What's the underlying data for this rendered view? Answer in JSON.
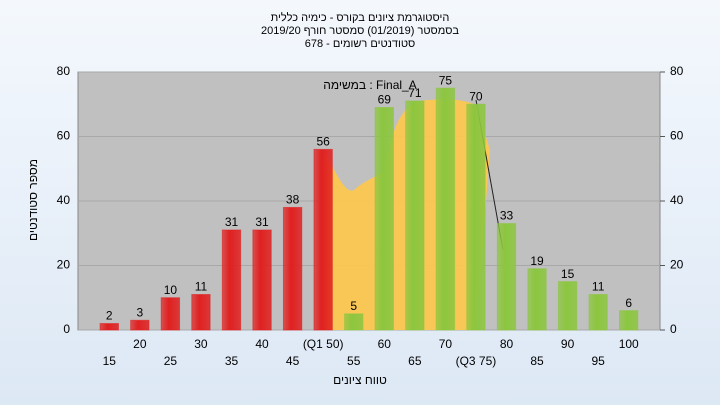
{
  "chart_data": {
    "type": "bar",
    "title": "היסטוגרמת ציונים בקורס - כימיה כללית",
    "subtitle": "בסמסטר  (01/2019)  סמסטר חורף 2019/20",
    "subtitle2": "סטודנטים רשומים - 678",
    "annotation": "במשימה : Final_A",
    "x_label": "טווח ציונים",
    "y_label": "מספר סטודנטים",
    "categories": [
      "15",
      "20",
      "25",
      "30",
      "35",
      "40",
      "45",
      "(Q1 50)",
      "55",
      "60",
      "65",
      "70",
      "(Q3 75)",
      "80",
      "85",
      "90",
      "95",
      "100"
    ],
    "values": [
      2,
      3,
      10,
      11,
      31,
      31,
      38,
      56,
      5,
      69,
      71,
      75,
      70,
      33,
      19,
      15,
      11,
      6
    ],
    "colors": [
      "#e02020",
      "#e02020",
      "#e02020",
      "#e02020",
      "#e02020",
      "#e02020",
      "#e02020",
      "#e02020",
      "#8cc63f",
      "#8cc63f",
      "#8cc63f",
      "#8cc63f",
      "#8cc63f",
      "#8cc63f",
      "#8cc63f",
      "#8cc63f",
      "#8cc63f",
      "#8cc63f"
    ],
    "ylim": [
      0,
      80
    ],
    "yticks": [
      0,
      20,
      40,
      60,
      80
    ],
    "y2lim": [
      0,
      80
    ],
    "y2ticks": [
      0,
      20,
      40,
      60,
      80
    ],
    "grid": true
  }
}
